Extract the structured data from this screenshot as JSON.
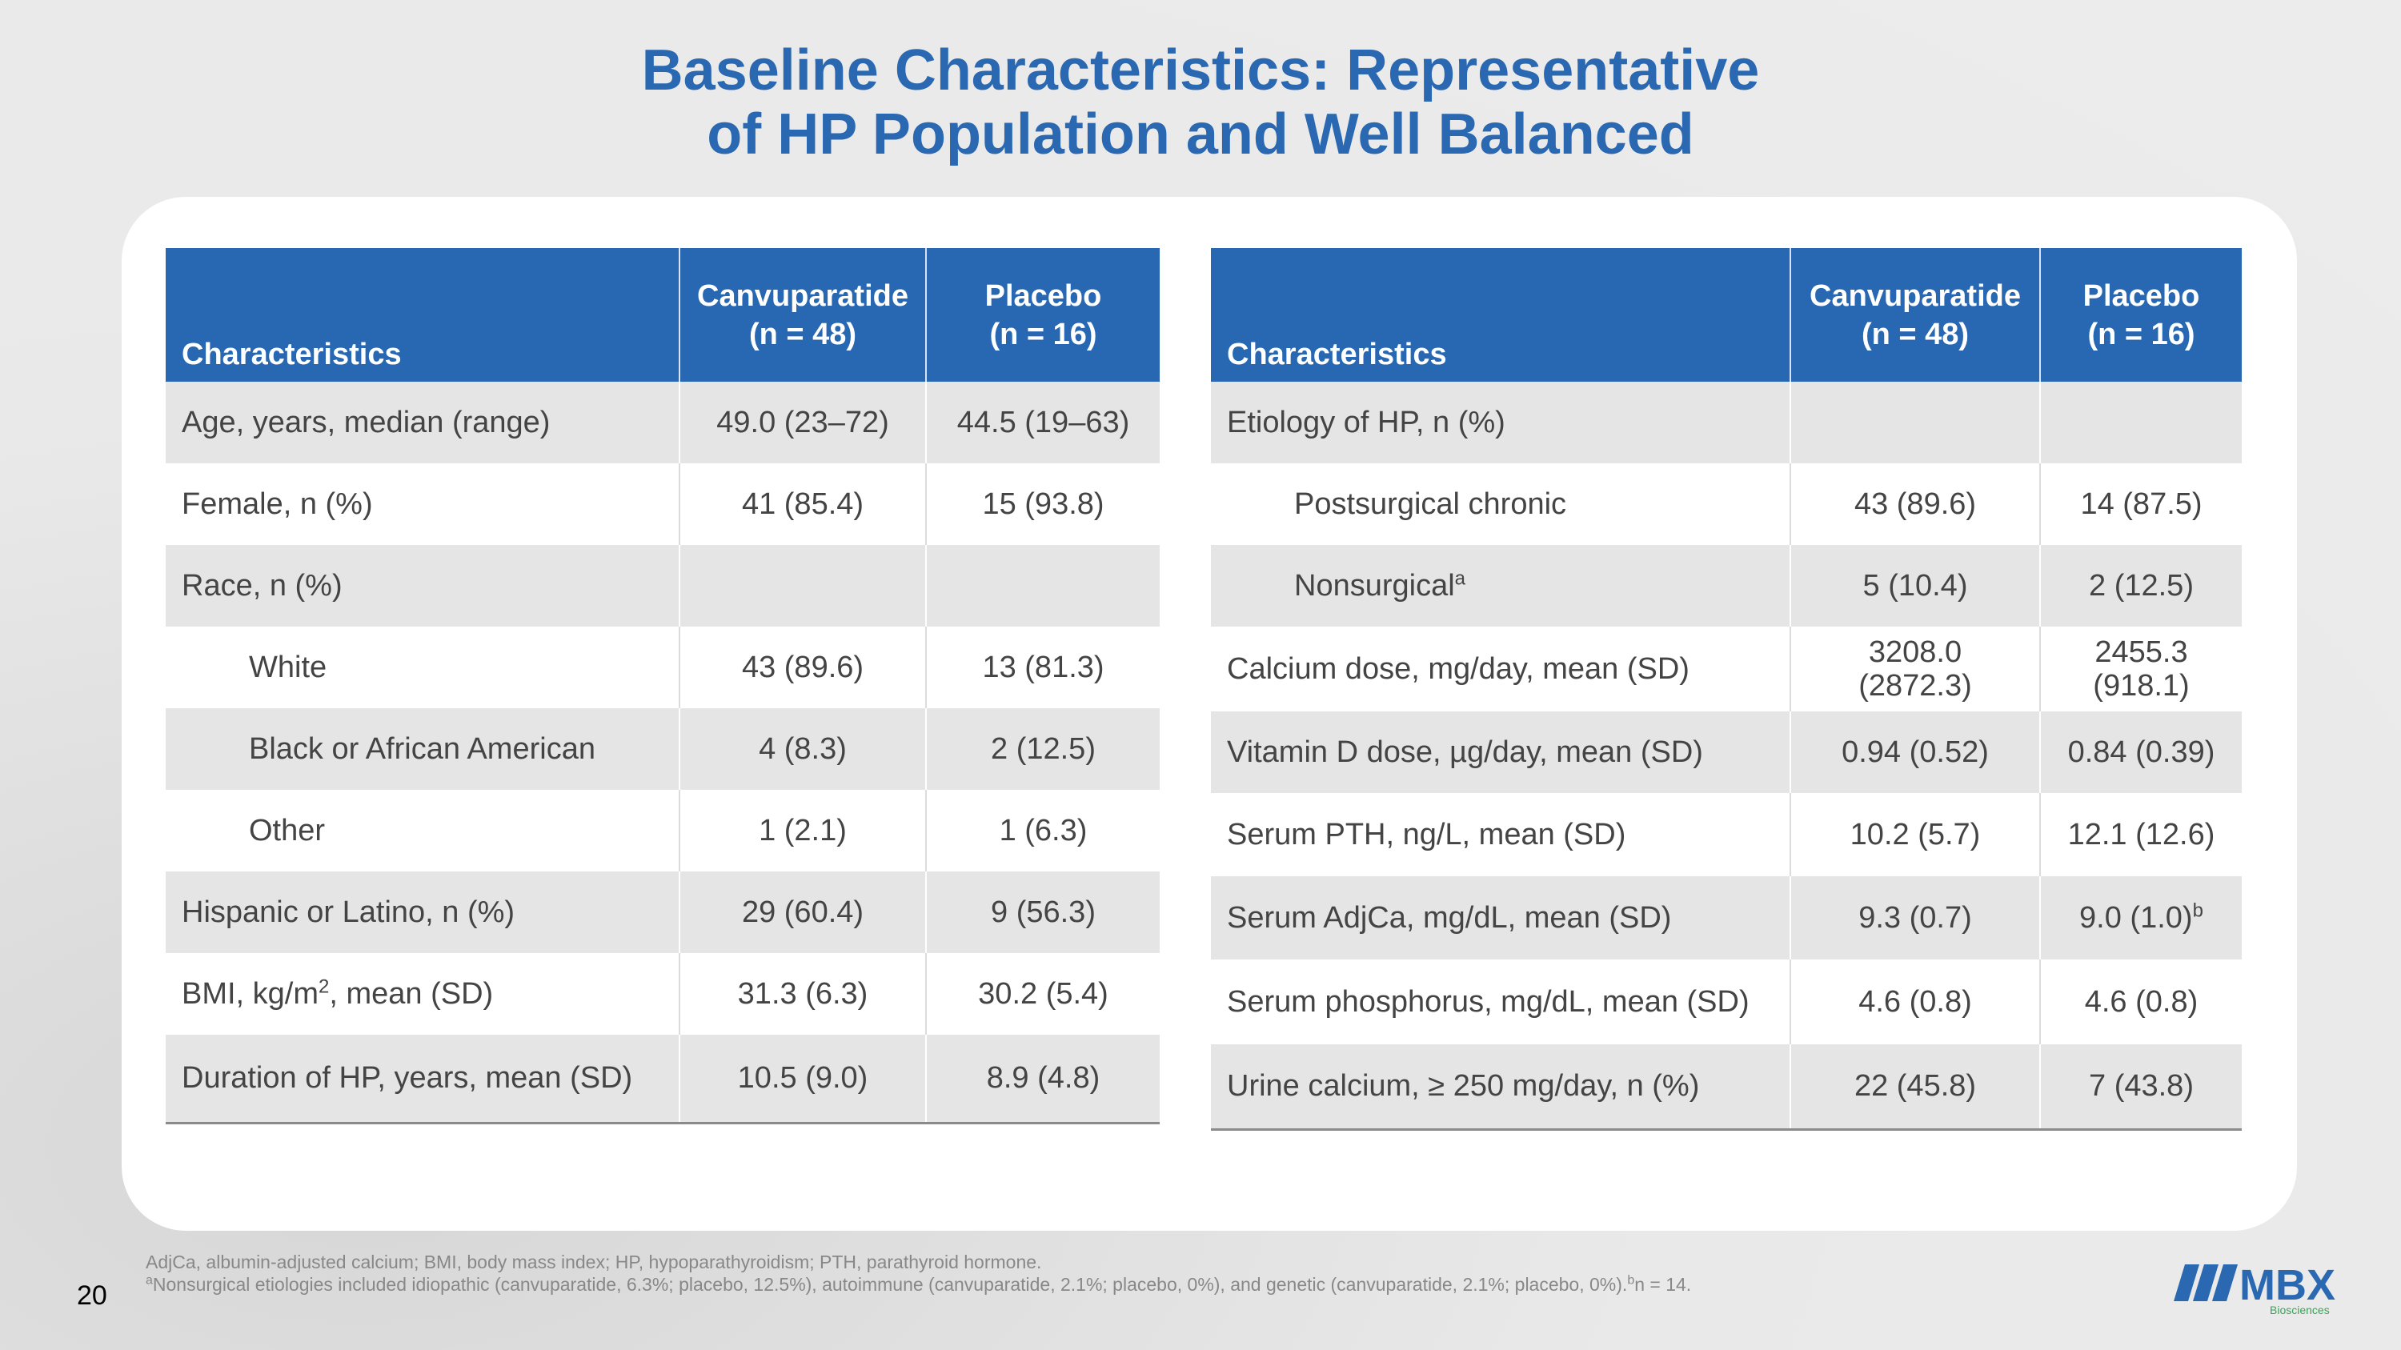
{
  "title": {
    "line1": "Baseline Characteristics: Representative",
    "line2": "of HP Population and Well Balanced"
  },
  "left_table": {
    "headers": {
      "characteristics": "Characteristics",
      "drug": "Canvuparatide",
      "drug_n": "(n = 48)",
      "placebo": "Placebo",
      "placebo_n": "(n = 16)"
    },
    "rows": [
      {
        "label": "Age, years, median (range)",
        "drug": "49.0 (23–72)",
        "placebo": "44.5 (19–63)"
      },
      {
        "label": "Female, n (%)",
        "drug": "41 (85.4)",
        "placebo": "15 (93.8)"
      },
      {
        "label": "Race, n (%)",
        "drug": "",
        "placebo": ""
      },
      {
        "label": "White",
        "drug": "43 (89.6)",
        "placebo": "13 (81.3)"
      },
      {
        "label": "Black or African American",
        "drug": "4 (8.3)",
        "placebo": "2 (12.5)"
      },
      {
        "label": "Other",
        "drug": "1 (2.1)",
        "placebo": "1 (6.3)"
      },
      {
        "label": "Hispanic or Latino, n (%)",
        "drug": "29 (60.4)",
        "placebo": "9 (56.3)"
      },
      {
        "label_pre": "BMI, kg/m",
        "label_sup": "2",
        "label_post": ", mean (SD)",
        "drug": "31.3 (6.3)",
        "placebo": "30.2 (5.4)"
      },
      {
        "label": "Duration of HP, years, mean (SD)",
        "drug": "10.5 (9.0)",
        "placebo": "8.9 (4.8)"
      }
    ]
  },
  "right_table": {
    "headers": {
      "characteristics": "Characteristics",
      "drug": "Canvuparatide",
      "drug_n": "(n = 48)",
      "placebo": "Placebo",
      "placebo_n": "(n = 16)"
    },
    "rows": [
      {
        "label": "Etiology of HP, n (%)",
        "drug": "",
        "placebo": ""
      },
      {
        "label": "Postsurgical chronic",
        "drug": "43 (89.6)",
        "placebo": "14 (87.5)"
      },
      {
        "label": "Nonsurgical",
        "label_sup": "a",
        "drug": "5 (10.4)",
        "placebo": "2 (12.5)"
      },
      {
        "label": "Calcium dose, mg/day, mean (SD)",
        "drug_l1": "3208.0",
        "drug_l2": "(2872.3)",
        "placebo_l1": "2455.3",
        "placebo_l2": "(918.1)"
      },
      {
        "label": "Vitamin D dose, µg/day, mean (SD)",
        "drug": "0.94 (0.52)",
        "placebo": "0.84 (0.39)"
      },
      {
        "label": "Serum PTH, ng/L, mean (SD)",
        "drug": "10.2 (5.7)",
        "placebo": "12.1 (12.6)"
      },
      {
        "label": "Serum AdjCa, mg/dL, mean (SD)",
        "drug": "9.3 (0.7)",
        "placebo": "9.0 (1.0)",
        "placebo_sup": "b"
      },
      {
        "label": "Serum phosphorus, mg/dL, mean (SD)",
        "drug": "4.6 (0.8)",
        "placebo": "4.6 (0.8)"
      },
      {
        "label": "Urine calcium, ≥ 250 mg/day, n (%)",
        "drug": "22 (45.8)",
        "placebo": "7 (43.8)"
      }
    ]
  },
  "footnotes": {
    "abbrev": "AdjCa, albumin-adjusted calcium; BMI, body mass index; HP, hypoparathyroidism; PTH, parathyroid hormone.",
    "note_a_sup": "a",
    "note_a": "Nonsurgical etiologies included idiopathic (canvuparatide, 6.3%; placebo, 12.5%), autoimmune (canvuparatide, 2.1%; placebo, 0%), and genetic (canvuparatide, 2.1%; placebo, 0%).",
    "note_b_sup": "b",
    "note_b": "n = 14."
  },
  "page_number": "20",
  "logo": {
    "text": "MBX",
    "subtext": "Biosciences",
    "color": "#2a68b1",
    "subcolor": "#3aa35a"
  },
  "colors": {
    "title": "#2a68b1",
    "header_bg": "#2867b2",
    "row_alt": "#e5e5e5"
  }
}
